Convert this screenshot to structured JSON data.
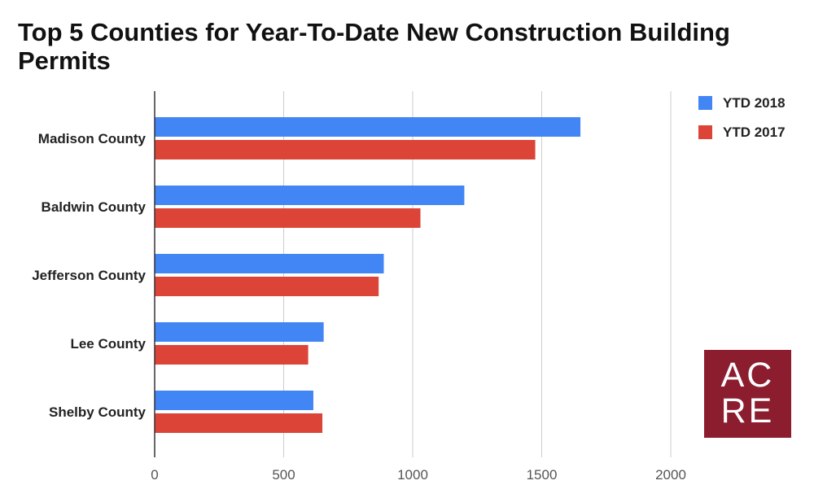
{
  "title": "Top 5 Counties for Year-To-Date New Construction Building Permits",
  "colors": {
    "series_2018": "#4285f4",
    "series_2017": "#db4437",
    "logo_bg": "#8c1d2f",
    "grid": "#cccccc",
    "axis": "#333333"
  },
  "logo": {
    "line1": "AC",
    "line2": "RE"
  },
  "chart_data": {
    "type": "bar",
    "orientation": "horizontal",
    "title": "Top 5 Counties for Year-To-Date New Construction Building Permits",
    "categories": [
      "Madison County",
      "Baldwin County",
      "Jefferson County",
      "Lee County",
      "Shelby County"
    ],
    "series": [
      {
        "name": "YTD 2018",
        "values": [
          1650,
          1200,
          888,
          655,
          615
        ],
        "color": "#4285f4"
      },
      {
        "name": "YTD 2017",
        "values": [
          1475,
          1030,
          868,
          595,
          650
        ],
        "color": "#db4437"
      }
    ],
    "xlim": [
      0,
      2000
    ],
    "xticks": [
      0,
      500,
      1000,
      1500,
      2000
    ],
    "xlabel": "",
    "ylabel": "",
    "grid": true,
    "legend": "top-right"
  }
}
